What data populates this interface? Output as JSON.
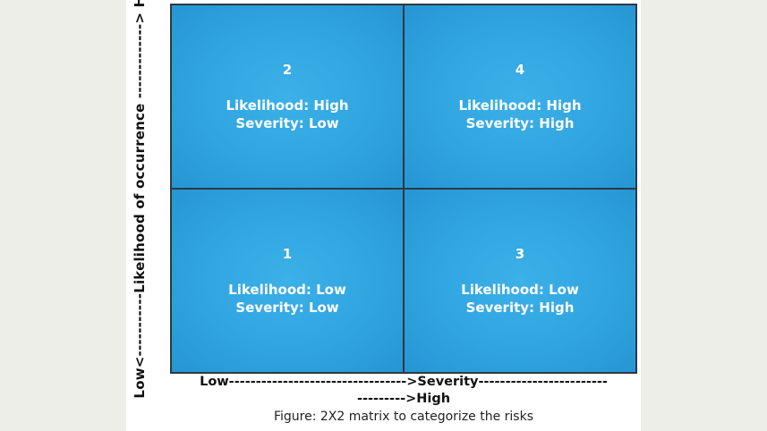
{
  "y_axis": {
    "label": "Low<-----------Likelihood of occurrence -------------> High"
  },
  "x_axis": {
    "line1": "Low--------------------------------->Severity------------------------",
    "line2": "--------->High"
  },
  "quadrants": {
    "top_left": {
      "number": "2",
      "likelihood": "Likelihood: High",
      "severity": "Severity: Low"
    },
    "top_right": {
      "number": "4",
      "likelihood": "Likelihood: High",
      "severity": "Severity: High"
    },
    "bottom_left": {
      "number": "1",
      "likelihood": "Likelihood: Low",
      "severity": "Severity: Low"
    },
    "bottom_right": {
      "number": "3",
      "likelihood": "Likelihood: Low",
      "severity": "Severity: High"
    }
  },
  "caption": "Figure: 2X2 matrix to categorize the risks",
  "colors": {
    "quadrant_fill": "#30a4df",
    "border": "#2b3a46",
    "text_on_fill": "#ffffff"
  }
}
